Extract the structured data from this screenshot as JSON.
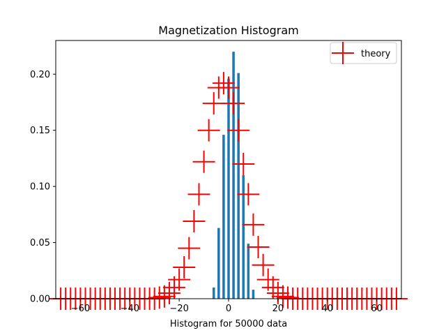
{
  "chart_data": {
    "type": "bar",
    "title": "Magnetization Histogram",
    "xlabel": "Histogram for 50000 data",
    "ylabel": "",
    "xlim": [
      -70,
      70
    ],
    "ylim": [
      0,
      0.23
    ],
    "xticks": [
      -60,
      -40,
      -20,
      0,
      20,
      40,
      60
    ],
    "xtick_labels": [
      "−60",
      "−40",
      "−20",
      "0",
      "20",
      "40",
      "60"
    ],
    "yticks": [
      0.0,
      0.05,
      0.1,
      0.15,
      0.2
    ],
    "ytick_labels": [
      "0.00",
      "0.05",
      "0.10",
      "0.15",
      "0.20"
    ],
    "grid": false,
    "legend_placement": "top-right",
    "histogram": {
      "color": "#1f77b4",
      "bar_width": 1,
      "x": [
        -6,
        -4,
        -2,
        0,
        2,
        4,
        6,
        8,
        10
      ],
      "values": [
        0.01,
        0.063,
        0.146,
        0.196,
        0.22,
        0.201,
        0.11,
        0.049,
        0.008
      ]
    },
    "series": [
      {
        "name": "theory",
        "color": "#ff0000",
        "marker": "+",
        "x": [
          -68,
          -66,
          -64,
          -62,
          -60,
          -58,
          -56,
          -54,
          -52,
          -50,
          -48,
          -46,
          -44,
          -42,
          -40,
          -38,
          -36,
          -34,
          -32,
          -30,
          -28,
          -26,
          -24,
          -22,
          -20,
          -18,
          -16,
          -14,
          -12,
          -10,
          -8,
          -6,
          -4,
          -2,
          0,
          2,
          4,
          6,
          8,
          10,
          12,
          14,
          16,
          18,
          20,
          22,
          24,
          26,
          28,
          30,
          32,
          34,
          36,
          38,
          40,
          42,
          44,
          46,
          48,
          50,
          52,
          54,
          56,
          58,
          60,
          62,
          64,
          66,
          68
        ],
        "values": [
          0.0,
          0.0,
          0.0,
          0.0,
          0.0,
          0.0,
          0.0,
          0.0,
          0.0,
          0.0,
          0.0,
          0.0,
          0.0,
          0.0,
          0.0,
          0.0,
          0.0,
          0.0,
          0.0,
          0.0,
          0.001,
          0.002,
          0.005,
          0.01,
          0.017,
          0.028,
          0.045,
          0.069,
          0.093,
          0.122,
          0.15,
          0.174,
          0.188,
          0.192,
          0.188,
          0.174,
          0.15,
          0.12,
          0.093,
          0.066,
          0.046,
          0.03,
          0.017,
          0.01,
          0.005,
          0.002,
          0.001,
          0.0,
          0.0,
          0.0,
          0.0,
          0.0,
          0.0,
          0.0,
          0.0,
          0.0,
          0.0,
          0.0,
          0.0,
          0.0,
          0.0,
          0.0,
          0.0,
          0.0,
          0.0,
          0.0,
          0.0,
          0.0,
          0.0
        ]
      }
    ]
  }
}
